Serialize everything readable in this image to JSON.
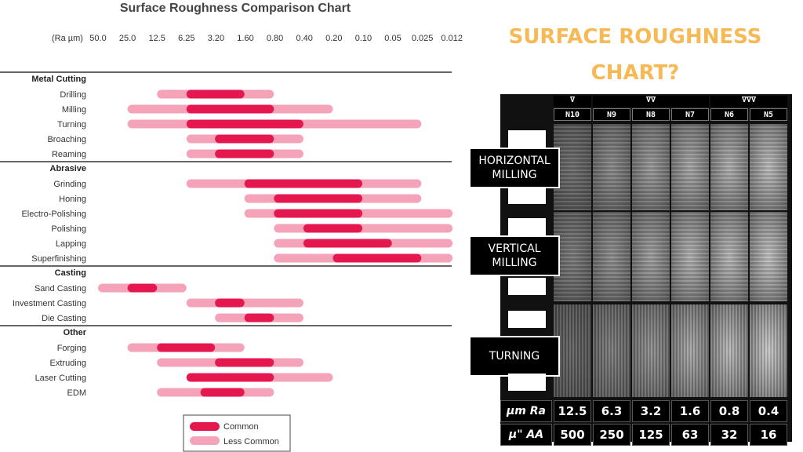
{
  "chart_data": {
    "type": "bar",
    "subtype": "range-bar",
    "title": "Surface Roughness Comparison Chart",
    "axis_unit_label": "(Ra µm)",
    "axis_ticks": [
      "50.0",
      "25.0",
      "12.5",
      "6.25",
      "3.20",
      "1.60",
      "0.80",
      "0.40",
      "0.20",
      "0.10",
      "0.05",
      "0.025",
      "0.012"
    ],
    "scale": "log2, decreasing",
    "colors": {
      "common": "#e5174f",
      "less_common": "#f4a3b8"
    },
    "groups": [
      {
        "name": "Metal Cutting",
        "processes": [
          {
            "name": "Drilling",
            "less": [
              12.5,
              0.8
            ],
            "common": [
              6.25,
              1.6
            ]
          },
          {
            "name": "Milling",
            "less": [
              25.0,
              0.2
            ],
            "common": [
              6.25,
              0.8
            ]
          },
          {
            "name": "Turning",
            "less": [
              25.0,
              0.025
            ],
            "common": [
              6.25,
              0.4
            ]
          },
          {
            "name": "Broaching",
            "less": [
              6.25,
              0.4
            ],
            "common": [
              3.2,
              0.8
            ]
          },
          {
            "name": "Reaming",
            "less": [
              6.25,
              0.4
            ],
            "common": [
              3.2,
              0.8
            ]
          }
        ]
      },
      {
        "name": "Abrasive",
        "processes": [
          {
            "name": "Grinding",
            "less": [
              6.25,
              0.025
            ],
            "common": [
              1.6,
              0.1
            ]
          },
          {
            "name": "Honing",
            "less": [
              1.6,
              0.025
            ],
            "common": [
              0.8,
              0.1
            ]
          },
          {
            "name": "Electro-Polishing",
            "less": [
              1.6,
              0.012
            ],
            "common": [
              0.8,
              0.1
            ]
          },
          {
            "name": "Polishing",
            "less": [
              0.8,
              0.012
            ],
            "common": [
              0.4,
              0.1
            ]
          },
          {
            "name": "Lapping",
            "less": [
              0.8,
              0.012
            ],
            "common": [
              0.4,
              0.05
            ]
          },
          {
            "name": "Superfinishing",
            "less": [
              0.8,
              0.012
            ],
            "common": [
              0.2,
              0.025
            ]
          }
        ]
      },
      {
        "name": "Casting",
        "processes": [
          {
            "name": "Sand Casting",
            "less": [
              50.0,
              6.25
            ],
            "common": [
              25.0,
              12.5
            ]
          },
          {
            "name": "Investment Casting",
            "less": [
              6.25,
              0.4
            ],
            "common": [
              3.2,
              1.6
            ]
          },
          {
            "name": "Die Casting",
            "less": [
              3.2,
              0.4
            ],
            "common": [
              1.6,
              0.8
            ]
          }
        ]
      },
      {
        "name": "Other",
        "processes": [
          {
            "name": "Forging",
            "less": [
              25.0,
              1.6
            ],
            "common": [
              12.5,
              3.2
            ]
          },
          {
            "name": "Extruding",
            "less": [
              12.5,
              0.4
            ],
            "common": [
              3.2,
              0.8
            ]
          },
          {
            "name": "Laser Cutting",
            "less": [
              6.25,
              0.2
            ],
            "common": [
              6.25,
              0.8
            ]
          },
          {
            "name": "EDM",
            "less": [
              12.5,
              0.8
            ],
            "common": [
              4.5,
              1.6
            ]
          }
        ]
      }
    ],
    "legend": {
      "common": "Common",
      "less_common": "Less Common",
      "placement": "bottom-center"
    }
  },
  "photo_panel": {
    "heading_line1": "SURFACE ROUGHNESS",
    "heading_line2": "CHART?",
    "symbol_groups": [
      "∇",
      "∇∇",
      "∇∇∇"
    ],
    "grades": [
      "N10",
      "N9",
      "N8",
      "N7",
      "N6",
      "N5"
    ],
    "rows": [
      "HORIZONTAL MILLING",
      "VERTICAL MILLING",
      "TURNING"
    ],
    "footer_rows": [
      {
        "label": "µm Ra",
        "values": [
          "12.5",
          "6.3",
          "3.2",
          "1.6",
          "0.8",
          "0.4"
        ]
      },
      {
        "label": "µ\" AA",
        "values": [
          "500",
          "250",
          "125",
          "63",
          "32",
          "16"
        ]
      }
    ]
  }
}
